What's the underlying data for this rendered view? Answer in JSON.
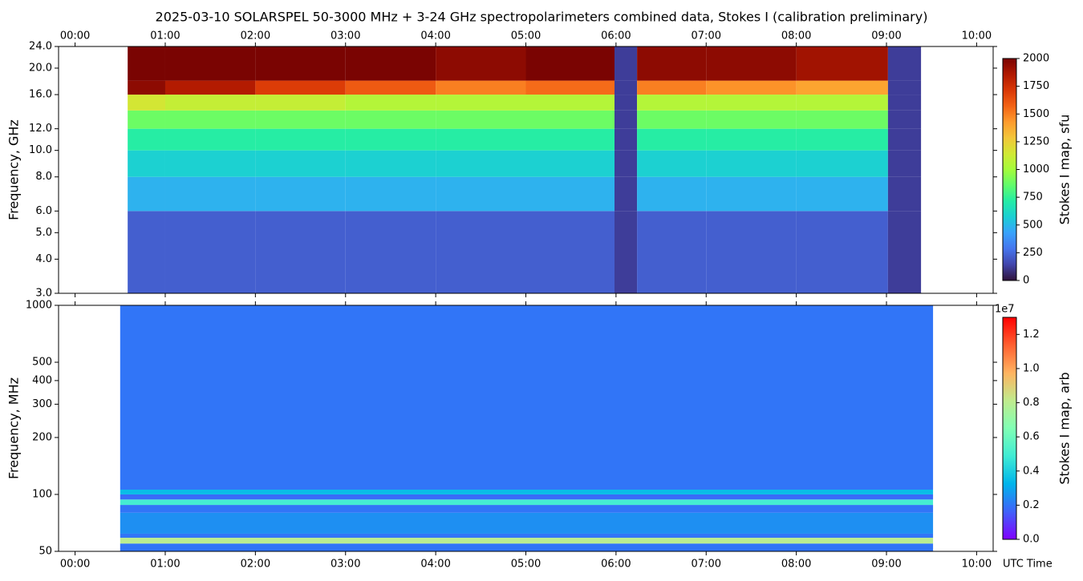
{
  "chart_data": [
    {
      "type": "heatmap",
      "title": "2025-03-10  SOLARSPEL  50-3000 MHz  +  3-24 GHz  spectropolarimeters combined data,  Stokes I  (calibration preliminary)",
      "ylabel": "Frequency, GHz",
      "yscale": "log",
      "xlim": [
        -11,
        611
      ],
      "xticks": [
        {
          "value": 0,
          "label": "00:00"
        },
        {
          "value": 60,
          "label": "01:00"
        },
        {
          "value": 120,
          "label": "02:00"
        },
        {
          "value": 180,
          "label": "03:00"
        },
        {
          "value": 240,
          "label": "04:00"
        },
        {
          "value": 300,
          "label": "05:00"
        },
        {
          "value": 360,
          "label": "06:00"
        },
        {
          "value": 420,
          "label": "07:00"
        },
        {
          "value": 480,
          "label": "08:00"
        },
        {
          "value": 540,
          "label": "09:00"
        },
        {
          "value": 600,
          "label": "10:00"
        }
      ],
      "ylim": [
        3,
        24
      ],
      "yticks": [
        {
          "value": 3,
          "label": "3.0"
        },
        {
          "value": 4,
          "label": "4.0"
        },
        {
          "value": 5,
          "label": "5.0"
        },
        {
          "value": 6,
          "label": "6.0"
        },
        {
          "value": 8,
          "label": "8.0"
        },
        {
          "value": 10,
          "label": "10.0"
        },
        {
          "value": 12,
          "label": "12.0"
        },
        {
          "value": 16,
          "label": "16.0"
        },
        {
          "value": 20,
          "label": "20.0"
        },
        {
          "value": 24,
          "label": "24.0"
        }
      ],
      "xbins": [
        35,
        60,
        120,
        180,
        240,
        300,
        359,
        374,
        420,
        480,
        541,
        563
      ],
      "ybins": [
        3,
        6,
        8,
        10,
        12,
        14,
        16,
        18,
        24
      ],
      "values": [
        [
          220,
          220,
          220,
          220,
          220,
          220,
          120,
          220,
          220,
          220,
          120
        ],
        [
          480,
          480,
          480,
          480,
          480,
          480,
          120,
          480,
          480,
          480,
          120
        ],
        [
          580,
          580,
          580,
          580,
          580,
          580,
          120,
          580,
          580,
          580,
          120
        ],
        [
          720,
          720,
          720,
          720,
          720,
          720,
          120,
          720,
          720,
          720,
          120
        ],
        [
          880,
          880,
          880,
          880,
          880,
          880,
          120,
          880,
          880,
          880,
          120
        ],
        [
          1150,
          1100,
          1100,
          1050,
          1050,
          1050,
          120,
          1050,
          1050,
          1050,
          120
        ],
        [
          1950,
          1850,
          1700,
          1600,
          1500,
          1550,
          120,
          1500,
          1450,
          1400,
          120
        ],
        [
          2000,
          2000,
          2000,
          2000,
          1950,
          2000,
          120,
          1950,
          1950,
          1900,
          120
        ]
      ],
      "clim": [
        0,
        2000
      ],
      "cticks": [
        0,
        250,
        500,
        750,
        1000,
        1250,
        1500,
        1750,
        2000
      ],
      "colorbar_label": "Stokes I map, sfu",
      "colormap": [
        "#30123b",
        "#4145ab",
        "#4675ed",
        "#39a2fc",
        "#1bcfd4",
        "#24eca6",
        "#61fc6c",
        "#a4fc3b",
        "#d1e834",
        "#f3c63a",
        "#fe9b2d",
        "#f36315",
        "#d93806",
        "#b11901",
        "#7a0402"
      ]
    },
    {
      "type": "heatmap",
      "ylabel": "Frequency, MHz",
      "xlabel": "UTC Time",
      "yscale": "log",
      "xlim": [
        -11,
        611
      ],
      "xticks": [
        {
          "value": 0,
          "label": "00:00"
        },
        {
          "value": 60,
          "label": "01:00"
        },
        {
          "value": 120,
          "label": "02:00"
        },
        {
          "value": 180,
          "label": "03:00"
        },
        {
          "value": 240,
          "label": "04:00"
        },
        {
          "value": 300,
          "label": "05:00"
        },
        {
          "value": 360,
          "label": "06:00"
        },
        {
          "value": 420,
          "label": "07:00"
        },
        {
          "value": 480,
          "label": "08:00"
        },
        {
          "value": 540,
          "label": "09:00"
        },
        {
          "value": 600,
          "label": "10:00"
        }
      ],
      "ylim": [
        50,
        1000
      ],
      "yticks": [
        50,
        100,
        200,
        300,
        400,
        500,
        1000
      ],
      "xbins": [
        30,
        571
      ],
      "ybins": [
        50,
        55,
        59,
        62,
        80,
        88,
        94,
        100,
        106,
        1000
      ],
      "values": [
        [
          2000000
        ],
        [
          8000000
        ],
        [
          2000000
        ],
        [
          2500000
        ],
        [
          2000000
        ],
        [
          5000000
        ],
        [
          1800000
        ],
        [
          3500000
        ],
        [
          2000000
        ]
      ],
      "clim": [
        0,
        13000000
      ],
      "cticks": [
        {
          "value": 0,
          "label": "0.0"
        },
        {
          "value": 2000000,
          "label": "0.2"
        },
        {
          "value": 4000000,
          "label": "0.4"
        },
        {
          "value": 6000000,
          "label": "0.6"
        },
        {
          "value": 8000000,
          "label": "0.8"
        },
        {
          "value": 10000000,
          "label": "1.0"
        },
        {
          "value": 12000000,
          "label": "1.2"
        }
      ],
      "offset_label": "1e7",
      "colorbar_label": "Stokes I map, arb",
      "colormap": [
        "#8000ff",
        "#4062fa",
        "#00b5eb",
        "#40ecd4",
        "#80ffb4",
        "#c0eb8d",
        "#ffb360",
        "#ff6030",
        "#ff0000"
      ]
    }
  ]
}
